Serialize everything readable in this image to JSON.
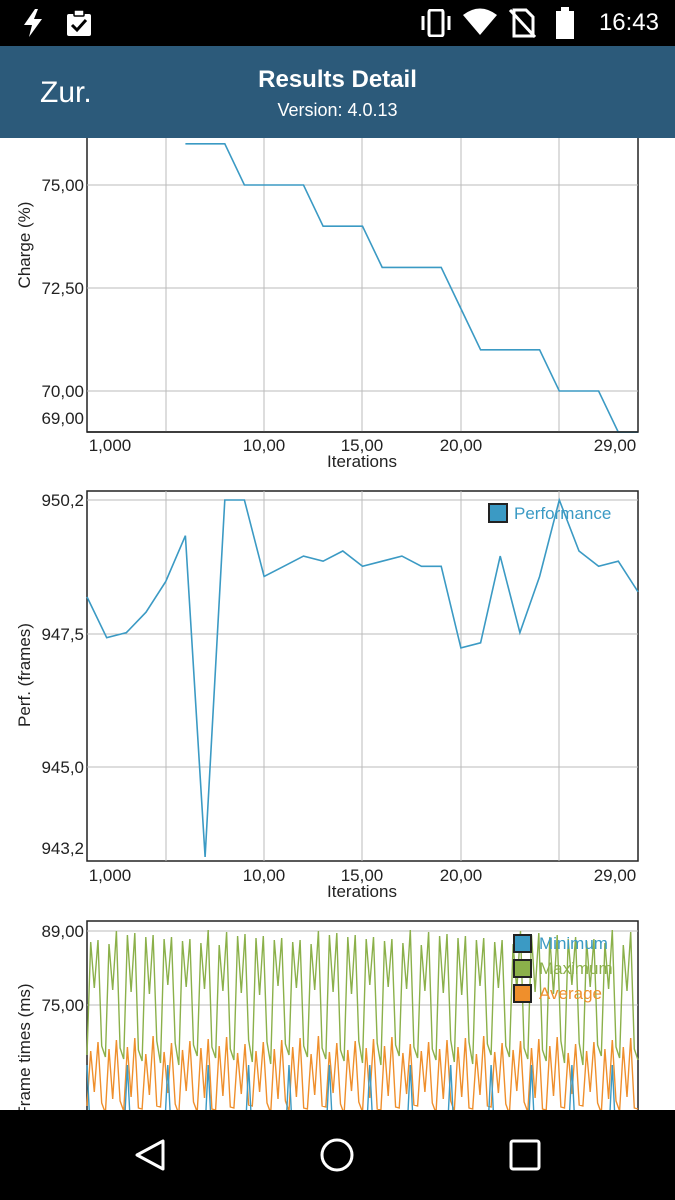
{
  "status_bar": {
    "time": "16:43",
    "icons": [
      "flash-icon",
      "clipboard-check-icon",
      "vibrate-icon",
      "wifi-icon",
      "no-sim-icon",
      "battery-icon"
    ]
  },
  "app_bar": {
    "back_label": "Zur.",
    "title": "Results Detail",
    "version": "Version: 4.0.13"
  },
  "nav_bar": {
    "icons": [
      "back-triangle-icon",
      "home-circle-icon",
      "recents-square-icon"
    ]
  },
  "colors": {
    "app_bar": "#2c5a7a",
    "series_blue": "#3b9ac4",
    "series_green": "#8bb04a",
    "series_orange": "#ef8f2c"
  },
  "chart_data": [
    {
      "type": "line",
      "ylabel": "Charge (%)",
      "xlabel": "Iterations",
      "x_tick_labels": [
        "1,000",
        "10,00",
        "15,00",
        "20,00",
        "29,00"
      ],
      "y_tick_labels": [
        "75,00",
        "72,50",
        "70,00",
        "69,00"
      ],
      "grid": true,
      "series": [
        {
          "x": [
            6,
            8,
            9,
            10,
            11,
            12,
            13,
            14,
            15,
            16,
            17,
            18,
            19,
            20,
            21,
            22,
            23,
            24,
            25,
            26,
            27,
            28,
            29
          ],
          "values": [
            76,
            76,
            75,
            75,
            75,
            75,
            74,
            74,
            74,
            73,
            73,
            73,
            73,
            72,
            71,
            71,
            71,
            71,
            70,
            70,
            70,
            69,
            69
          ]
        }
      ]
    },
    {
      "type": "line",
      "ylabel": "Perf. (frames)",
      "xlabel": "Iterations",
      "x_tick_labels": [
        "1,000",
        "10,00",
        "15,00",
        "20,00",
        "29,00"
      ],
      "y_tick_labels": [
        "950,2",
        "947,5",
        "945,0",
        "943,2"
      ],
      "legend": "top-right",
      "grid": true,
      "series": [
        {
          "name": "Performance",
          "x": [
            1,
            2,
            3,
            4,
            5,
            6,
            7,
            8,
            9,
            10,
            11,
            12,
            13,
            14,
            15,
            16,
            17,
            18,
            19,
            20,
            21,
            22,
            23,
            24,
            25,
            26,
            27,
            28,
            29
          ],
          "values": [
            948.3,
            947.5,
            947.6,
            948,
            948.6,
            949.5,
            943.2,
            950.2,
            950.2,
            948.7,
            948.9,
            949.1,
            949,
            949.2,
            948.9,
            949,
            949.1,
            948.9,
            948.9,
            947.3,
            947.4,
            949.1,
            947.6,
            948.7,
            950.2,
            949.2,
            948.9,
            949,
            948.4
          ]
        }
      ]
    },
    {
      "type": "line",
      "ylabel": "Frame times (ms)",
      "y_tick_labels": [
        "89,00",
        "75,00"
      ],
      "legend": "top-right",
      "grid": true,
      "series": [
        {
          "name": "Minimum"
        },
        {
          "name": "Maximum"
        },
        {
          "name": "Average"
        }
      ]
    }
  ]
}
